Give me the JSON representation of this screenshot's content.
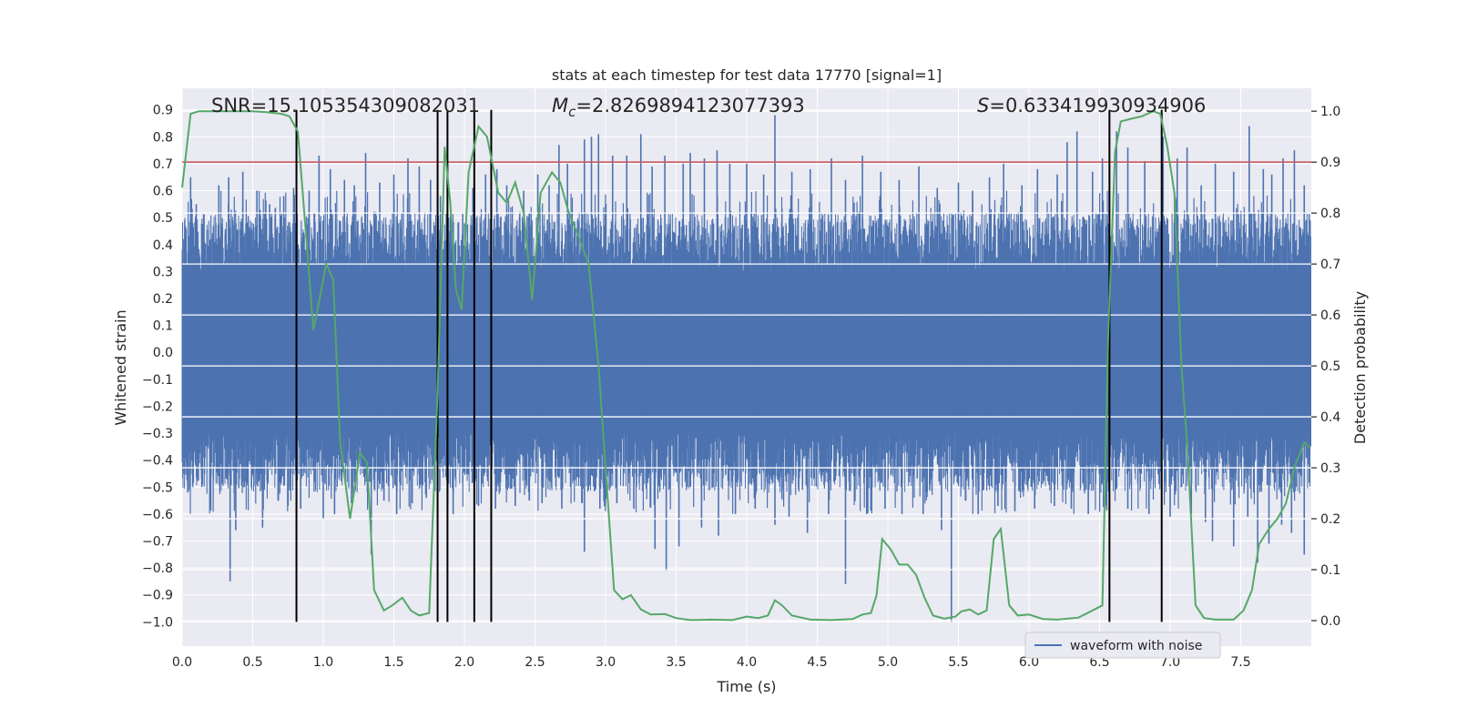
{
  "chart_data": {
    "type": "line",
    "title": "stats at each timestep for test data 17770 [signal=1]",
    "xlabel": "Time (s)",
    "ylabel": "Whitened strain",
    "y2label": "Detection probability",
    "xlim": [
      0.0,
      8.0
    ],
    "ylim": [
      -1.09,
      0.98
    ],
    "y2lim": [
      -0.05,
      1.045
    ],
    "xticks": [
      "0.0",
      "0.5",
      "1.0",
      "1.5",
      "2.0",
      "2.5",
      "3.0",
      "3.5",
      "4.0",
      "4.5",
      "5.0",
      "5.5",
      "6.0",
      "6.5",
      "7.0",
      "7.5"
    ],
    "yticks": [
      "0.9",
      "0.8",
      "0.7",
      "0.6",
      "0.5",
      "0.4",
      "0.3",
      "0.2",
      "0.1",
      "0.0",
      "−0.1",
      "−0.2",
      "−0.3",
      "−0.4",
      "−0.5",
      "−0.6",
      "−0.7",
      "−0.8",
      "−0.9",
      "−1.0"
    ],
    "y2ticks": [
      "1.0",
      "0.9",
      "0.8",
      "0.7",
      "0.6",
      "0.5",
      "0.4",
      "0.3",
      "0.2",
      "0.1",
      "0.0"
    ],
    "annotations": {
      "snr": "SNR=15.105354309082031",
      "mc_symbol": "M",
      "mc_sub": "c",
      "mc_value": "=2.8269894123077393",
      "s_symbol": "S",
      "s_value": "=0.633419930934906"
    },
    "legend": {
      "label": "waveform with noise",
      "location": "lower-right"
    },
    "threshold": {
      "value": 0.9,
      "axis": "right",
      "color": "#c44e52"
    },
    "event_markers": [
      0.81,
      1.81,
      1.88,
      2.07,
      2.19,
      6.57,
      6.94
    ],
    "event_marker_range": [
      -1.0,
      0.9
    ],
    "probability_series": {
      "name": "Detection probability",
      "color": "#55a868",
      "points": [
        [
          0.0,
          0.85
        ],
        [
          0.06,
          0.995
        ],
        [
          0.12,
          1.0
        ],
        [
          0.2,
          1.0
        ],
        [
          0.3,
          1.0
        ],
        [
          0.4,
          1.0
        ],
        [
          0.5,
          1.0
        ],
        [
          0.6,
          0.998
        ],
        [
          0.7,
          0.995
        ],
        [
          0.76,
          0.99
        ],
        [
          0.82,
          0.96
        ],
        [
          0.88,
          0.75
        ],
        [
          0.93,
          0.57
        ],
        [
          0.98,
          0.64
        ],
        [
          1.02,
          0.7
        ],
        [
          1.07,
          0.67
        ],
        [
          1.12,
          0.35
        ],
        [
          1.19,
          0.2
        ],
        [
          1.26,
          0.33
        ],
        [
          1.31,
          0.31
        ],
        [
          1.36,
          0.06
        ],
        [
          1.43,
          0.02
        ],
        [
          1.49,
          0.03
        ],
        [
          1.56,
          0.045
        ],
        [
          1.62,
          0.02
        ],
        [
          1.68,
          0.01
        ],
        [
          1.75,
          0.015
        ],
        [
          1.81,
          0.45
        ],
        [
          1.86,
          0.93
        ],
        [
          1.9,
          0.82
        ],
        [
          1.94,
          0.65
        ],
        [
          1.98,
          0.61
        ],
        [
          2.03,
          0.88
        ],
        [
          2.1,
          0.97
        ],
        [
          2.16,
          0.95
        ],
        [
          2.24,
          0.84
        ],
        [
          2.3,
          0.82
        ],
        [
          2.36,
          0.86
        ],
        [
          2.42,
          0.8
        ],
        [
          2.48,
          0.63
        ],
        [
          2.54,
          0.84
        ],
        [
          2.62,
          0.88
        ],
        [
          2.68,
          0.86
        ],
        [
          2.74,
          0.8
        ],
        [
          2.8,
          0.76
        ],
        [
          2.88,
          0.7
        ],
        [
          2.95,
          0.5
        ],
        [
          3.0,
          0.3
        ],
        [
          3.06,
          0.06
        ],
        [
          3.12,
          0.042
        ],
        [
          3.18,
          0.05
        ],
        [
          3.25,
          0.022
        ],
        [
          3.32,
          0.012
        ],
        [
          3.42,
          0.013
        ],
        [
          3.5,
          0.005
        ],
        [
          3.6,
          0.001
        ],
        [
          3.75,
          0.002
        ],
        [
          3.9,
          0.001
        ],
        [
          4.0,
          0.008
        ],
        [
          4.08,
          0.005
        ],
        [
          4.15,
          0.01
        ],
        [
          4.2,
          0.04
        ],
        [
          4.25,
          0.03
        ],
        [
          4.32,
          0.01
        ],
        [
          4.45,
          0.002
        ],
        [
          4.6,
          0.001
        ],
        [
          4.75,
          0.003
        ],
        [
          4.82,
          0.012
        ],
        [
          4.88,
          0.015
        ],
        [
          4.92,
          0.05
        ],
        [
          4.96,
          0.16
        ],
        [
          5.02,
          0.14
        ],
        [
          5.08,
          0.11
        ],
        [
          5.14,
          0.11
        ],
        [
          5.2,
          0.09
        ],
        [
          5.26,
          0.045
        ],
        [
          5.32,
          0.01
        ],
        [
          5.4,
          0.004
        ],
        [
          5.48,
          0.008
        ],
        [
          5.52,
          0.018
        ],
        [
          5.58,
          0.022
        ],
        [
          5.64,
          0.012
        ],
        [
          5.7,
          0.02
        ],
        [
          5.75,
          0.16
        ],
        [
          5.8,
          0.18
        ],
        [
          5.86,
          0.03
        ],
        [
          5.92,
          0.01
        ],
        [
          6.0,
          0.012
        ],
        [
          6.1,
          0.003
        ],
        [
          6.2,
          0.002
        ],
        [
          6.35,
          0.006
        ],
        [
          6.45,
          0.02
        ],
        [
          6.52,
          0.03
        ],
        [
          6.56,
          0.55
        ],
        [
          6.61,
          0.92
        ],
        [
          6.65,
          0.98
        ],
        [
          6.72,
          0.985
        ],
        [
          6.8,
          0.99
        ],
        [
          6.88,
          1.0
        ],
        [
          6.93,
          0.995
        ],
        [
          6.98,
          0.93
        ],
        [
          7.03,
          0.84
        ],
        [
          7.08,
          0.5
        ],
        [
          7.12,
          0.35
        ],
        [
          7.18,
          0.03
        ],
        [
          7.24,
          0.005
        ],
        [
          7.32,
          0.002
        ],
        [
          7.45,
          0.002
        ],
        [
          7.52,
          0.02
        ],
        [
          7.58,
          0.06
        ],
        [
          7.63,
          0.15
        ],
        [
          7.7,
          0.18
        ],
        [
          7.76,
          0.2
        ],
        [
          7.82,
          0.23
        ],
        [
          7.88,
          0.3
        ],
        [
          7.95,
          0.35
        ],
        [
          7.99,
          0.34
        ]
      ]
    },
    "waveform_series": {
      "name": "waveform with noise",
      "color": "#4c72b0",
      "description": "dense noisy whitened strain sampled across the full time range, envelope roughly ±0.35 with spikes up to ~0.85 and down to ~−1.0",
      "core_amplitude": 0.3,
      "spikes_up": [
        [
          0.06,
          0.65
        ],
        [
          0.1,
          0.55
        ],
        [
          0.26,
          0.62
        ],
        [
          0.33,
          0.65
        ],
        [
          0.43,
          0.67
        ],
        [
          0.53,
          0.6
        ],
        [
          0.62,
          0.55
        ],
        [
          0.72,
          0.58
        ],
        [
          0.79,
          0.61
        ],
        [
          0.9,
          0.6
        ],
        [
          0.97,
          0.73
        ],
        [
          1.05,
          0.68
        ],
        [
          1.15,
          0.64
        ],
        [
          1.22,
          0.62
        ],
        [
          1.3,
          0.74
        ],
        [
          1.4,
          0.63
        ],
        [
          1.5,
          0.66
        ],
        [
          1.6,
          0.72
        ],
        [
          1.68,
          0.69
        ],
        [
          1.76,
          0.64
        ],
        [
          1.83,
          0.58
        ],
        [
          2.06,
          0.61
        ],
        [
          2.15,
          0.66
        ],
        [
          2.23,
          0.68
        ],
        [
          2.3,
          0.62
        ],
        [
          2.42,
          0.6
        ],
        [
          2.52,
          0.66
        ],
        [
          2.6,
          0.62
        ],
        [
          2.67,
          0.77
        ],
        [
          2.73,
          0.7
        ],
        [
          2.85,
          0.79
        ],
        [
          2.9,
          0.8
        ],
        [
          2.95,
          0.81
        ],
        [
          3.05,
          0.73
        ],
        [
          3.15,
          0.73
        ],
        [
          3.25,
          0.81
        ],
        [
          3.33,
          0.69
        ],
        [
          3.42,
          0.73
        ],
        [
          3.55,
          0.7
        ],
        [
          3.6,
          0.74
        ],
        [
          3.7,
          0.72
        ],
        [
          3.79,
          0.75
        ],
        [
          3.88,
          0.7
        ],
        [
          4.0,
          0.7
        ],
        [
          4.12,
          0.66
        ],
        [
          4.2,
          0.88
        ],
        [
          4.32,
          0.67
        ],
        [
          4.45,
          0.68
        ],
        [
          4.6,
          0.72
        ],
        [
          4.7,
          0.64
        ],
        [
          4.82,
          0.73
        ],
        [
          4.95,
          0.67
        ],
        [
          5.08,
          0.64
        ],
        [
          5.22,
          0.69
        ],
        [
          5.35,
          0.61
        ],
        [
          5.5,
          0.63
        ],
        [
          5.6,
          0.6
        ],
        [
          5.72,
          0.65
        ],
        [
          5.82,
          0.7
        ],
        [
          5.95,
          0.62
        ],
        [
          6.06,
          0.68
        ],
        [
          6.2,
          0.66
        ],
        [
          6.27,
          0.78
        ],
        [
          6.34,
          0.82
        ],
        [
          6.45,
          0.67
        ],
        [
          6.52,
          0.72
        ],
        [
          6.62,
          0.82
        ],
        [
          6.7,
          0.76
        ],
        [
          6.82,
          0.71
        ],
        [
          6.95,
          0.8
        ],
        [
          7.05,
          0.72
        ],
        [
          7.12,
          0.76
        ],
        [
          7.22,
          0.62
        ],
        [
          7.32,
          0.7
        ],
        [
          7.45,
          0.67
        ],
        [
          7.56,
          0.84
        ],
        [
          7.66,
          0.68
        ],
        [
          7.72,
          0.66
        ],
        [
          7.8,
          0.72
        ],
        [
          7.88,
          0.75
        ],
        [
          7.95,
          0.62
        ]
      ],
      "spikes_down": [
        [
          0.04,
          -0.52
        ],
        [
          0.14,
          -0.5
        ],
        [
          0.2,
          -0.58
        ],
        [
          0.34,
          -0.85
        ],
        [
          0.38,
          -0.66
        ],
        [
          0.57,
          -0.65
        ],
        [
          0.68,
          -0.55
        ],
        [
          0.75,
          -0.57
        ],
        [
          0.84,
          -0.58
        ],
        [
          1.0,
          -0.62
        ],
        [
          1.08,
          -0.6
        ],
        [
          1.2,
          -0.56
        ],
        [
          1.34,
          -0.75
        ],
        [
          1.43,
          -0.55
        ],
        [
          1.52,
          -0.6
        ],
        [
          1.63,
          -0.56
        ],
        [
          1.73,
          -0.54
        ],
        [
          1.92,
          -0.6
        ],
        [
          2.1,
          -0.57
        ],
        [
          2.22,
          -0.58
        ],
        [
          2.36,
          -0.57
        ],
        [
          2.46,
          -0.55
        ],
        [
          2.55,
          -0.56
        ],
        [
          2.69,
          -0.58
        ],
        [
          2.85,
          -0.74
        ],
        [
          2.96,
          -0.58
        ],
        [
          3.08,
          -0.56
        ],
        [
          3.2,
          -0.58
        ],
        [
          3.35,
          -0.73
        ],
        [
          3.43,
          -0.81
        ],
        [
          3.52,
          -0.72
        ],
        [
          3.68,
          -0.65
        ],
        [
          3.8,
          -0.68
        ],
        [
          3.92,
          -0.6
        ],
        [
          4.06,
          -0.58
        ],
        [
          4.2,
          -0.64
        ],
        [
          4.3,
          -0.61
        ],
        [
          4.43,
          -0.67
        ],
        [
          4.58,
          -0.6
        ],
        [
          4.7,
          -0.86
        ],
        [
          4.85,
          -0.6
        ],
        [
          4.98,
          -0.58
        ],
        [
          5.1,
          -0.6
        ],
        [
          5.25,
          -0.6
        ],
        [
          5.38,
          -0.66
        ],
        [
          5.45,
          -1.0
        ],
        [
          5.55,
          -0.55
        ],
        [
          5.64,
          -0.6
        ],
        [
          5.78,
          -0.57
        ],
        [
          5.9,
          -0.59
        ],
        [
          6.04,
          -0.58
        ],
        [
          6.18,
          -0.57
        ],
        [
          6.3,
          -0.58
        ],
        [
          6.42,
          -0.6
        ],
        [
          6.55,
          -0.58
        ],
        [
          6.7,
          -0.58
        ],
        [
          6.85,
          -0.6
        ],
        [
          7.0,
          -0.61
        ],
        [
          7.15,
          -0.6
        ],
        [
          7.25,
          -0.63
        ],
        [
          7.3,
          -0.7
        ],
        [
          7.45,
          -0.72
        ],
        [
          7.55,
          -0.61
        ],
        [
          7.62,
          -0.78
        ],
        [
          7.7,
          -0.71
        ],
        [
          7.79,
          -0.64
        ],
        [
          7.86,
          -0.67
        ],
        [
          7.95,
          -0.75
        ]
      ]
    }
  }
}
